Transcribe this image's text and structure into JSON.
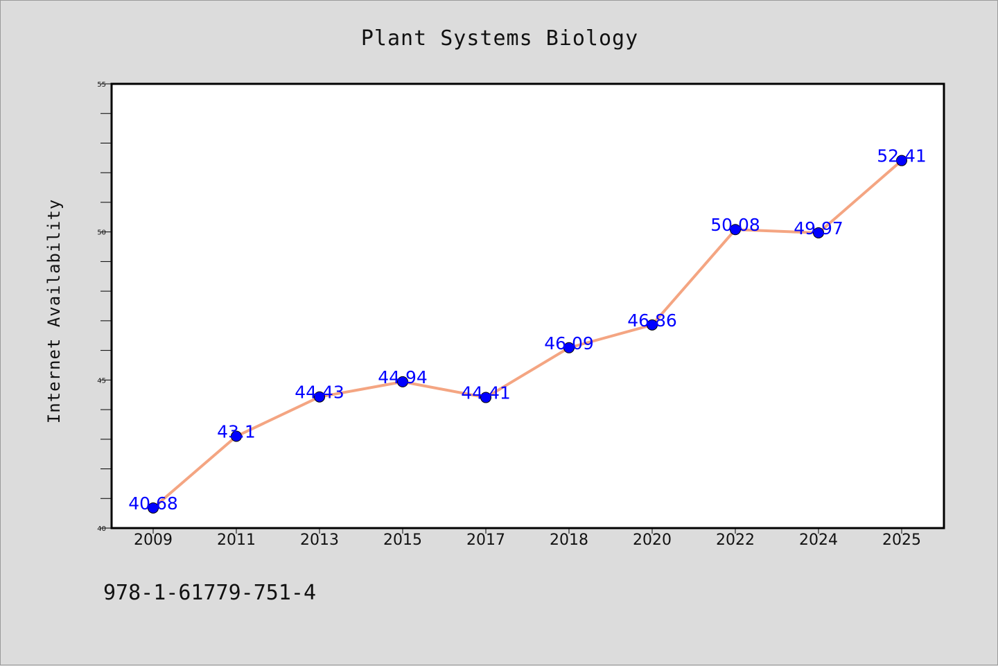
{
  "chart_data": {
    "type": "line",
    "title": "Plant Systems Biology",
    "xlabel": "",
    "ylabel": "Internet Availability",
    "categories": [
      "2009",
      "2011",
      "2013",
      "2015",
      "2017",
      "2018",
      "2020",
      "2022",
      "2024",
      "2025"
    ],
    "series": [
      {
        "values": [
          40.68,
          43.1,
          44.43,
          44.94,
          44.41,
          46.09,
          46.86,
          50.08,
          49.97,
          52.41
        ],
        "labels": [
          "40.68",
          "43.1",
          "44.43",
          "44.94",
          "44.41",
          "46.09",
          "46.86",
          "50.08",
          "49.97",
          "52.41"
        ],
        "line_color": "#f4a582",
        "marker_color": "#0000ff"
      }
    ],
    "ylim": [
      40,
      55
    ],
    "yticks": [
      "40",
      "45",
      "50",
      "55"
    ],
    "grid": false,
    "legend": "none"
  },
  "footer": {
    "isbn": "978-1-61779-751-4"
  },
  "colors": {
    "background": "#dcdcdc",
    "plot_background": "#ffffff",
    "label_color": "#0000ff"
  }
}
